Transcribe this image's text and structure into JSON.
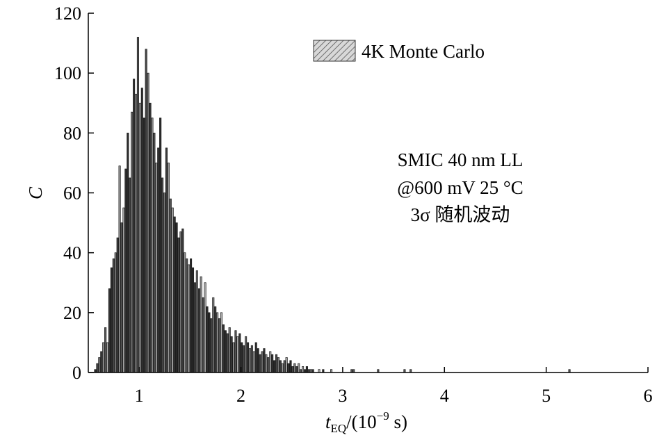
{
  "chart_data": {
    "type": "bar",
    "xlabel_main": "t",
    "xlabel_sub": "EQ",
    "xlabel_tail": "/(10",
    "xlabel_exp": "−9",
    "xlabel_end": " s)",
    "ylabel": "C",
    "xlim": [
      0.5,
      6.0
    ],
    "ylim": [
      0,
      120
    ],
    "x_ticks": [
      "1",
      "2",
      "3",
      "4",
      "5",
      "6"
    ],
    "y_ticks": [
      "0",
      "20",
      "40",
      "60",
      "80",
      "100",
      "120"
    ],
    "legend": {
      "label": "4K Monte Carlo",
      "position": "top-right"
    },
    "annotation": [
      "SMIC 40 nm LL",
      "@600 mV 25 °C",
      "3σ 随机波动"
    ],
    "bin_width": 0.02,
    "bins_start": 0.56,
    "values": [
      1,
      3,
      5,
      7,
      10,
      15,
      10,
      28,
      35,
      38,
      40,
      45,
      69,
      50,
      55,
      68,
      80,
      65,
      87,
      98,
      93,
      112,
      90,
      95,
      85,
      108,
      100,
      90,
      85,
      80,
      70,
      75,
      85,
      65,
      60,
      75,
      70,
      58,
      55,
      52,
      50,
      45,
      47,
      48,
      40,
      38,
      36,
      38,
      35,
      30,
      34,
      28,
      32,
      25,
      30,
      22,
      20,
      18,
      25,
      22,
      20,
      18,
      20,
      16,
      14,
      13,
      15,
      12,
      10,
      14,
      12,
      13,
      10,
      9,
      12,
      10,
      8,
      9,
      7,
      10,
      8,
      6,
      7,
      8,
      6,
      5,
      7,
      6,
      4,
      6,
      5,
      4,
      3,
      4,
      5,
      3,
      4,
      2,
      3,
      2,
      3,
      1,
      2,
      1,
      2,
      1,
      1,
      1,
      0,
      0,
      1,
      0,
      1,
      0,
      0,
      0,
      1
    ],
    "outliers": [
      {
        "x": 3.08,
        "v": 1
      },
      {
        "x": 3.1,
        "v": 1
      },
      {
        "x": 3.34,
        "v": 1
      },
      {
        "x": 3.6,
        "v": 1
      },
      {
        "x": 3.66,
        "v": 1
      },
      {
        "x": 5.22,
        "v": 1
      }
    ]
  }
}
